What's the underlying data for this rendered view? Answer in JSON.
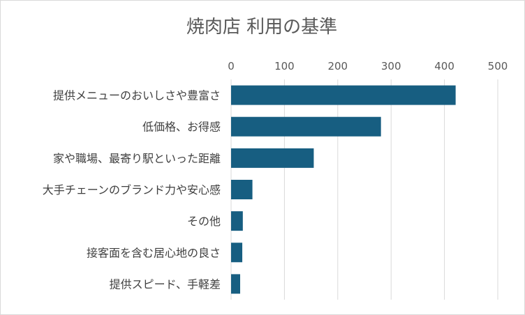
{
  "chart_data": {
    "type": "bar",
    "orientation": "horizontal",
    "title": "焼肉店 利用の基準",
    "xlabel": "",
    "ylabel": "",
    "xlim": [
      0,
      500
    ],
    "x_ticks": [
      0,
      100,
      200,
      300,
      400,
      500
    ],
    "x_tick_labels": [
      "0",
      "100",
      "200",
      "300",
      "400",
      "500"
    ],
    "x_axis_position": "top",
    "grid": true,
    "legend": "none",
    "categories": [
      "提供メニューのおいしさや豊富さ",
      "低価格、お得感",
      "家や職場、最寄り駅といった距離",
      "大手チェーンのブランド力や安心感",
      "その他",
      "接客面を含む居心地の良さ",
      "提供スピード、手軽差"
    ],
    "values": [
      421,
      281,
      155,
      40,
      22,
      21,
      17
    ],
    "colors": {
      "bar": "#175e81",
      "grid": "#d9d9d9",
      "text": "#595959"
    }
  }
}
